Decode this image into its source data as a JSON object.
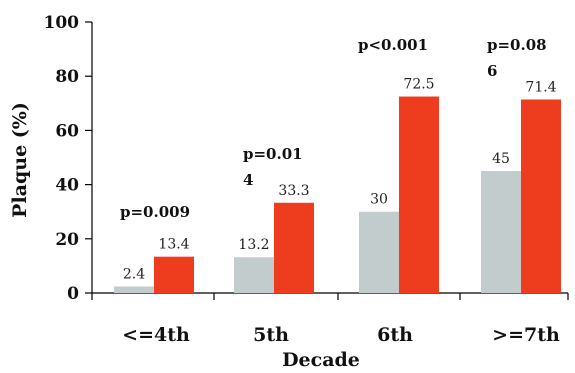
{
  "chart_data": {
    "type": "bar",
    "categories": [
      "<=4th",
      "5th",
      "6th",
      ">=7th"
    ],
    "series": [
      {
        "values": [
          2.4,
          13.2,
          30,
          45
        ],
        "labels": [
          "2.4",
          "13.2",
          "30",
          "45"
        ]
      },
      {
        "values": [
          13.4,
          33.3,
          72.5,
          71.4
        ],
        "labels": [
          "13.4",
          "33.3",
          "72.5",
          "71.4"
        ]
      }
    ],
    "colors": [
      "#c2cccc",
      "#ee3c1f"
    ],
    "xlabel": "Decade",
    "ylabel": "Plaque (%)",
    "ylim": [
      0,
      100
    ],
    "yticks": [
      0,
      20,
      40,
      60,
      80,
      100
    ],
    "ytick_labels": [
      "0",
      "20",
      "40",
      "60",
      "80",
      "100"
    ],
    "annotations": [
      {
        "category_index": 0,
        "lines": [
          "p=0.009"
        ]
      },
      {
        "category_index": 1,
        "lines": [
          "p=0.01",
          "4"
        ]
      },
      {
        "category_index": 2,
        "lines": [
          "p<0.001"
        ]
      },
      {
        "category_index": 3,
        "lines": [
          "p=0.08",
          "6"
        ]
      }
    ]
  }
}
